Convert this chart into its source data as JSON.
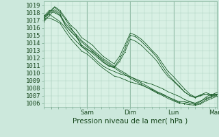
{
  "bg_color": "#cce8dc",
  "plot_bg_color": "#d8f0e4",
  "grid_color": "#aacfbf",
  "line_color": "#1a5c28",
  "ylim": [
    1005.5,
    1019.5
  ],
  "yticks": [
    1006,
    1007,
    1008,
    1009,
    1010,
    1011,
    1012,
    1013,
    1014,
    1015,
    1016,
    1017,
    1018,
    1019
  ],
  "xlabel": "Pression niveau de la mer( hPa )",
  "xtick_positions": [
    0.18,
    1.0,
    2.0,
    3.0,
    3.95
  ],
  "xtick_labels": [
    "",
    "Sam",
    "Dim",
    "Lun",
    "Mar"
  ],
  "vline_positions": [
    1.0,
    2.0,
    3.0
  ],
  "tick_fontsize": 6.5,
  "xlabel_fontsize": 7.5,
  "figsize": [
    3.2,
    2.0
  ],
  "dpi": 100,
  "series": [
    [
      1017.3,
      1018.1,
      1018.0,
      1017.6,
      1016.3,
      1015.5,
      1014.8,
      1014.1,
      1013.5,
      1012.9,
      1012.3,
      1011.7,
      1011.2,
      1010.7,
      1010.2,
      1009.8,
      1009.3,
      1008.9,
      1008.5,
      1008.1,
      1007.7,
      1007.3,
      1007.0,
      1006.6,
      1006.3,
      1006.0,
      1006.0,
      1006.2,
      1005.9,
      1006.2,
      1006.8,
      1007.2,
      1007.1
    ],
    [
      1017.5,
      1018.3,
      1018.2,
      1017.7,
      1016.6,
      1015.8,
      1015.1,
      1014.3,
      1013.7,
      1013.1,
      1012.5,
      1011.9,
      1011.4,
      1010.9,
      1010.4,
      1010.0,
      1009.5,
      1009.1,
      1008.7,
      1008.3,
      1007.9,
      1007.5,
      1007.2,
      1006.8,
      1006.5,
      1006.2,
      1006.2,
      1006.0,
      1005.8,
      1006.0,
      1006.5,
      1006.8,
      1007.0
    ],
    [
      1017.0,
      1017.9,
      1018.7,
      1018.1,
      1017.1,
      1016.0,
      1015.0,
      1013.5,
      1013.1,
      1012.8,
      1012.2,
      1011.5,
      1011.0,
      1010.8,
      1011.8,
      1013.2,
      1015.0,
      1014.8,
      1014.2,
      1013.5,
      1012.8,
      1012.0,
      1010.8,
      1009.8,
      1009.0,
      1008.3,
      1007.5,
      1007.0,
      1006.7,
      1007.0,
      1007.2,
      1007.0,
      1007.2
    ],
    [
      1016.8,
      1017.6,
      1018.4,
      1017.9,
      1016.3,
      1015.5,
      1014.8,
      1013.7,
      1013.2,
      1012.6,
      1012.0,
      1011.4,
      1010.9,
      1010.7,
      1011.5,
      1012.8,
      1014.5,
      1014.2,
      1013.7,
      1013.0,
      1012.3,
      1011.5,
      1010.4,
      1009.5,
      1008.9,
      1008.2,
      1007.5,
      1007.0,
      1006.8,
      1007.1,
      1007.4,
      1007.1,
      1007.4
    ],
    [
      1017.2,
      1018.1,
      1018.8,
      1018.3,
      1017.3,
      1016.3,
      1015.7,
      1014.7,
      1014.2,
      1013.7,
      1012.9,
      1012.2,
      1011.7,
      1011.2,
      1012.2,
      1013.7,
      1015.3,
      1015.0,
      1014.5,
      1013.8,
      1013.0,
      1012.3,
      1011.2,
      1010.2,
      1009.5,
      1008.7,
      1007.9,
      1007.2,
      1006.8,
      1007.0,
      1007.2,
      1007.0,
      1007.2
    ],
    [
      1017.1,
      1017.3,
      1017.0,
      1016.6,
      1015.5,
      1014.5,
      1013.7,
      1012.9,
      1012.5,
      1011.9,
      1011.2,
      1010.6,
      1010.1,
      1009.6,
      1009.4,
      1009.1,
      1008.8,
      1008.6,
      1008.4,
      1008.1,
      1007.8,
      1007.4,
      1007.1,
      1006.8,
      1006.4,
      1006.1,
      1005.9,
      1005.8,
      1005.7,
      1005.9,
      1006.3,
      1006.6,
      1006.9
    ],
    [
      1017.6,
      1017.8,
      1017.3,
      1016.8,
      1016.0,
      1015.0,
      1014.2,
      1013.5,
      1012.9,
      1012.2,
      1011.5,
      1010.9,
      1010.5,
      1010.2,
      1009.9,
      1009.7,
      1009.5,
      1009.2,
      1008.9,
      1008.7,
      1008.5,
      1008.2,
      1007.9,
      1007.5,
      1007.2,
      1006.9,
      1006.5,
      1006.2,
      1006.0,
      1006.3,
      1006.6,
      1006.9,
      1007.1
    ]
  ]
}
